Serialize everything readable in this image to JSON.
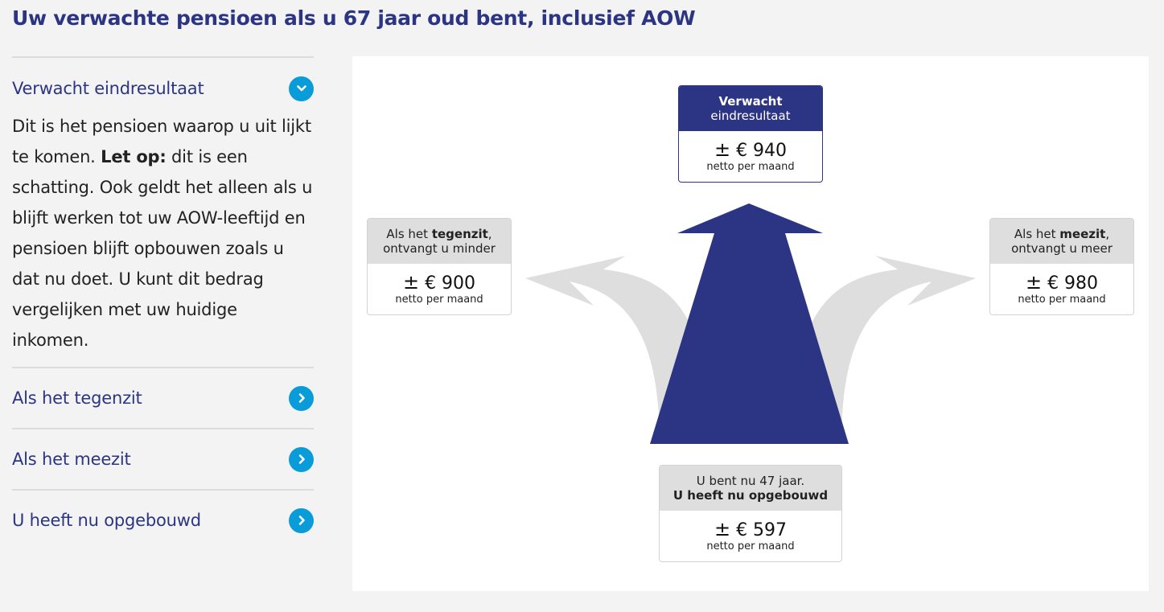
{
  "title": "Uw verwachte pensioen als u 67 jaar oud bent, inclusief AOW",
  "accordion": {
    "open": {
      "title": "Verwacht eindresultaat",
      "body_1": "Dit is het pensioen waarop u uit lijkt te komen. ",
      "body_bold": "Let op:",
      "body_2": " dit is een schatting. Ook geldt het alleen als u blijft werken tot uw AOW-leeftijd en pensioen blijft opbouwen zoals u dat nu doet. U kunt dit bedrag vergelijken met uw huidige inkomen."
    },
    "items": [
      {
        "title": "Als het tegenzit"
      },
      {
        "title": "Als het meezit"
      },
      {
        "title": "U heeft nu opgebouwd"
      }
    ]
  },
  "boxes": {
    "expected": {
      "line1": "Verwacht",
      "line2": "eindresultaat",
      "prefix": "±",
      "amount": "€ 940",
      "unit": "netto per maand"
    },
    "tegenzit": {
      "pre": "Als het ",
      "bold": "tegenzit",
      "post": ",",
      "line2": "ontvangt u minder",
      "prefix": "±",
      "amount": "€ 900",
      "unit": "netto per maand"
    },
    "meezit": {
      "pre": "Als het ",
      "bold": "meezit",
      "post": ",",
      "line2": "ontvangt u meer",
      "prefix": "±",
      "amount": "€ 980",
      "unit": "netto per maand"
    },
    "current": {
      "line1": "U bent nu 47 jaar.",
      "line2": "U heeft nu opgebouwd",
      "prefix": "±",
      "amount": "€ 597",
      "unit": "netto per maand"
    }
  },
  "colors": {
    "brand": "#2c3584",
    "accent": "#0a9bd9",
    "side_arrow": "#dedede"
  },
  "icons": {
    "open": "chevron-down-icon",
    "closed": "chevron-right-icon",
    "arrows": "fork-arrow-icon"
  }
}
